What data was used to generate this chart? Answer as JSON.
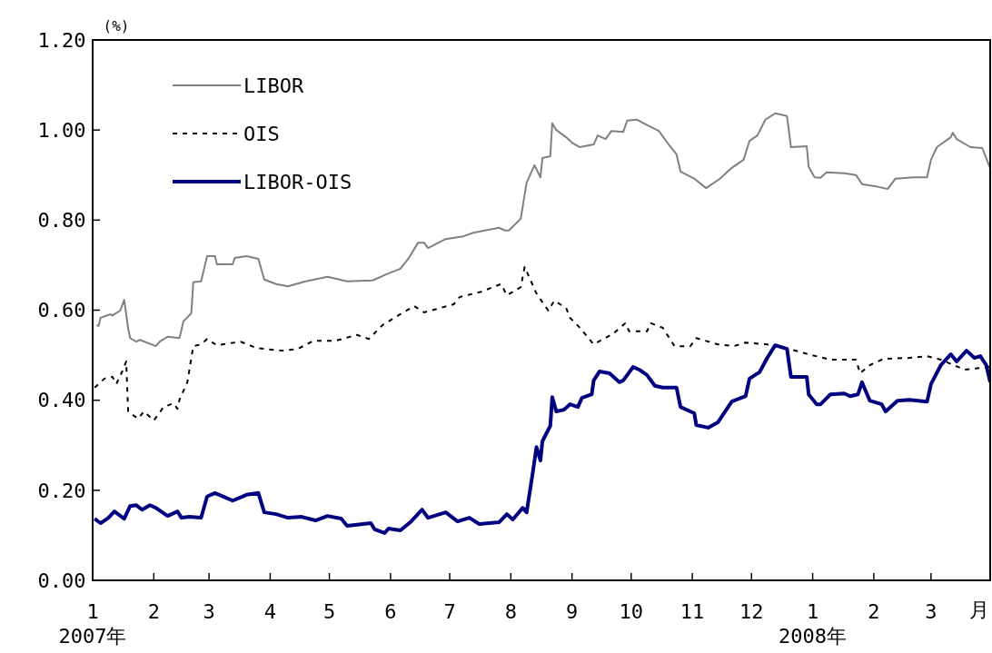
{
  "chart_data": {
    "type": "line",
    "ylabel": "(%)",
    "xlabel": "月",
    "legend": "top left",
    "grid": false,
    "xlim": [
      "2007-01-01",
      "2008-03-31"
    ],
    "ylim": [
      0,
      1.2
    ],
    "xticks": [
      {
        "value": "2007-01-01",
        "label": "1\n2007年"
      },
      {
        "value": "2007-02-01",
        "label": "2"
      },
      {
        "value": "2007-03-01",
        "label": "3"
      },
      {
        "value": "2007-04-01",
        "label": "4"
      },
      {
        "value": "2007-05-01",
        "label": "5"
      },
      {
        "value": "2007-06-01",
        "label": "6"
      },
      {
        "value": "2007-07-01",
        "label": "7"
      },
      {
        "value": "2007-08-01",
        "label": "8"
      },
      {
        "value": "2007-09-01",
        "label": "9"
      },
      {
        "value": "2007-10-01",
        "label": "10"
      },
      {
        "value": "2007-11-01",
        "label": "11"
      },
      {
        "value": "2007-12-01",
        "label": "12"
      },
      {
        "value": "2008-01-01",
        "label": "1\n2008年"
      },
      {
        "value": "2008-02-01",
        "label": "2"
      },
      {
        "value": "2008-03-01",
        "label": "3"
      }
    ],
    "yticks": [
      {
        "value": 0,
        "label": "0.00"
      },
      {
        "value": 0.2,
        "label": "0.20"
      },
      {
        "value": 0.4,
        "label": "0.40"
      },
      {
        "value": 0.6,
        "label": "0.60"
      },
      {
        "value": 0.8,
        "label": "0.80"
      },
      {
        "value": 1,
        "label": "1.00"
      },
      {
        "value": 1.2,
        "label": "1.20"
      }
    ],
    "series": [
      {
        "name": "LIBOR",
        "color": "#808080",
        "line_style": "solid",
        "x": [
          "2007-01-03",
          "2007-01-04",
          "2007-01-05",
          "2007-01-10",
          "2007-01-11",
          "2007-01-15",
          "2007-01-17",
          "2007-01-19",
          "2007-01-20",
          "2007-01-23",
          "2007-01-25",
          "2007-02-02",
          "2007-02-04",
          "2007-02-08",
          "2007-02-14",
          "2007-02-16",
          "2007-02-20",
          "2007-02-21",
          "2007-02-25",
          "2007-02-28",
          "2007-03-04",
          "2007-03-05",
          "2007-03-13",
          "2007-03-14",
          "2007-03-20",
          "2007-03-26",
          "2007-03-29",
          "2007-04-04",
          "2007-04-10",
          "2007-04-19",
          "2007-04-30",
          "2007-05-10",
          "2007-05-23",
          "2007-05-30",
          "2007-06-06",
          "2007-06-10",
          "2007-06-15",
          "2007-06-18",
          "2007-06-20",
          "2007-06-29",
          "2007-07-08",
          "2007-07-13",
          "2007-07-26",
          "2007-07-29",
          "2007-07-31",
          "2007-08-06",
          "2007-08-09",
          "2007-08-13",
          "2007-08-16",
          "2007-08-17",
          "2007-08-21",
          "2007-08-22",
          "2007-08-24",
          "2007-08-29",
          "2007-09-01",
          "2007-09-05",
          "2007-09-12",
          "2007-09-14",
          "2007-09-18",
          "2007-09-21",
          "2007-09-27",
          "2007-09-29",
          "2007-10-04",
          "2007-10-09",
          "2007-10-15",
          "2007-10-20",
          "2007-10-24",
          "2007-10-26",
          "2007-11-02",
          "2007-11-08",
          "2007-11-15",
          "2007-11-21",
          "2007-11-27",
          "2007-11-30",
          "2007-12-04",
          "2007-12-08",
          "2007-12-13",
          "2007-12-19",
          "2007-12-21",
          "2007-12-29",
          "2007-12-30",
          "2008-01-02",
          "2008-01-05",
          "2008-01-08",
          "2008-01-17",
          "2008-01-23",
          "2008-01-26",
          "2008-02-02",
          "2008-02-08",
          "2008-02-12",
          "2008-02-21",
          "2008-02-28",
          "2008-03-01",
          "2008-03-04",
          "2008-03-11",
          "2008-03-12",
          "2008-03-14",
          "2008-03-21",
          "2008-03-27",
          "2008-03-31"
        ],
        "values": [
          0.567,
          0.565,
          0.583,
          0.591,
          0.588,
          0.599,
          0.623,
          0.559,
          0.538,
          0.53,
          0.534,
          0.52,
          0.53,
          0.541,
          0.538,
          0.575,
          0.593,
          0.662,
          0.664,
          0.72,
          0.72,
          0.702,
          0.702,
          0.716,
          0.72,
          0.714,
          0.668,
          0.658,
          0.653,
          0.664,
          0.674,
          0.664,
          0.666,
          0.68,
          0.692,
          0.714,
          0.75,
          0.75,
          0.738,
          0.758,
          0.764,
          0.772,
          0.783,
          0.777,
          0.777,
          0.803,
          0.883,
          0.922,
          0.895,
          0.938,
          0.942,
          1.015,
          1.0,
          0.984,
          0.972,
          0.962,
          0.968,
          0.988,
          0.98,
          0.998,
          0.996,
          1.021,
          1.023,
          1.011,
          0.998,
          0.968,
          0.946,
          0.908,
          0.892,
          0.871,
          0.892,
          0.916,
          0.934,
          0.976,
          0.988,
          1.023,
          1.037,
          1.031,
          0.962,
          0.964,
          0.918,
          0.895,
          0.894,
          0.906,
          0.904,
          0.9,
          0.88,
          0.875,
          0.869,
          0.892,
          0.895,
          0.895,
          0.934,
          0.962,
          0.984,
          0.994,
          0.98,
          0.962,
          0.96,
          0.915
        ]
      },
      {
        "name": "OIS",
        "color": "#000000",
        "line_style": "dotted",
        "x": [
          "2007-01-02",
          "2007-01-07",
          "2007-01-11",
          "2007-01-13",
          "2007-01-16",
          "2007-01-18",
          "2007-01-19",
          "2007-01-24",
          "2007-01-27",
          "2007-02-01",
          "2007-02-06",
          "2007-02-11",
          "2007-02-13",
          "2007-02-14",
          "2007-02-18",
          "2007-02-21",
          "2007-02-25",
          "2007-02-28",
          "2007-03-05",
          "2007-03-17",
          "2007-03-25",
          "2007-04-07",
          "2007-04-15",
          "2007-04-23",
          "2007-05-04",
          "2007-05-15",
          "2007-05-21",
          "2007-05-28",
          "2007-06-06",
          "2007-06-13",
          "2007-06-18",
          "2007-07-03",
          "2007-07-06",
          "2007-07-17",
          "2007-07-27",
          "2007-07-30",
          "2007-08-06",
          "2007-08-08",
          "2007-08-14",
          "2007-08-20",
          "2007-08-23",
          "2007-08-29",
          "2007-08-31",
          "2007-09-05",
          "2007-09-12",
          "2007-09-22",
          "2007-09-28",
          "2007-09-30",
          "2007-10-09",
          "2007-10-11",
          "2007-10-17",
          "2007-10-23",
          "2007-10-31",
          "2007-11-03",
          "2007-11-14",
          "2007-11-22",
          "2007-11-28",
          "2007-12-09",
          "2007-12-20",
          "2007-12-30",
          "2008-01-10",
          "2008-01-23",
          "2008-01-25",
          "2008-01-30",
          "2008-02-06",
          "2008-02-19",
          "2008-02-28",
          "2008-03-06",
          "2008-03-18",
          "2008-03-27",
          "2008-03-31"
        ],
        "values": [
          0.428,
          0.448,
          0.452,
          0.436,
          0.464,
          0.486,
          0.375,
          0.359,
          0.375,
          0.355,
          0.385,
          0.393,
          0.381,
          0.401,
          0.44,
          0.52,
          0.524,
          0.536,
          0.522,
          0.53,
          0.516,
          0.51,
          0.514,
          0.532,
          0.532,
          0.545,
          0.536,
          0.567,
          0.591,
          0.609,
          0.595,
          0.613,
          0.629,
          0.641,
          0.658,
          0.633,
          0.651,
          0.696,
          0.637,
          0.599,
          0.621,
          0.605,
          0.583,
          0.561,
          0.524,
          0.548,
          0.571,
          0.553,
          0.553,
          0.571,
          0.561,
          0.52,
          0.52,
          0.538,
          0.524,
          0.52,
          0.528,
          0.524,
          0.514,
          0.502,
          0.49,
          0.49,
          0.46,
          0.478,
          0.492,
          0.494,
          0.498,
          0.49,
          0.468,
          0.472,
          0.475
        ]
      },
      {
        "name": "LIBOR-OIS",
        "color": "#000080",
        "line_style": "solid",
        "x": [
          "2007-01-02",
          "2007-01-05",
          "2007-01-09",
          "2007-01-12",
          "2007-01-17",
          "2007-01-20",
          "2007-01-23",
          "2007-01-26",
          "2007-01-30",
          "2007-02-02",
          "2007-02-08",
          "2007-02-13",
          "2007-02-15",
          "2007-02-19",
          "2007-02-25",
          "2007-02-28",
          "2007-03-04",
          "2007-03-13",
          "2007-03-20",
          "2007-03-26",
          "2007-03-29",
          "2007-04-04",
          "2007-04-10",
          "2007-04-17",
          "2007-04-24",
          "2007-04-30",
          "2007-05-07",
          "2007-05-10",
          "2007-05-22",
          "2007-05-24",
          "2007-05-29",
          "2007-05-31",
          "2007-06-06",
          "2007-06-11",
          "2007-06-17",
          "2007-06-20",
          "2007-06-29",
          "2007-07-05",
          "2007-07-11",
          "2007-07-16",
          "2007-07-26",
          "2007-07-30",
          "2007-08-02",
          "2007-08-07",
          "2007-08-09",
          "2007-08-12",
          "2007-08-14",
          "2007-08-16",
          "2007-08-17",
          "2007-08-21",
          "2007-08-22",
          "2007-08-24",
          "2007-08-28",
          "2007-08-31",
          "2007-09-04",
          "2007-09-06",
          "2007-09-11",
          "2007-09-12",
          "2007-09-15",
          "2007-09-20",
          "2007-09-25",
          "2007-09-27",
          "2007-10-02",
          "2007-10-05",
          "2007-10-09",
          "2007-10-13",
          "2007-10-17",
          "2007-10-24",
          "2007-10-26",
          "2007-11-02",
          "2007-11-03",
          "2007-11-09",
          "2007-11-14",
          "2007-11-21",
          "2007-11-28",
          "2007-11-30",
          "2007-12-05",
          "2007-12-09",
          "2007-12-13",
          "2007-12-19",
          "2007-12-21",
          "2007-12-29",
          "2007-12-30",
          "2008-01-03",
          "2008-01-05",
          "2008-01-10",
          "2008-01-17",
          "2008-01-20",
          "2008-01-24",
          "2008-01-26",
          "2008-01-30",
          "2008-02-05",
          "2008-02-07",
          "2008-02-13",
          "2008-02-19",
          "2008-02-28",
          "2008-03-01",
          "2008-03-06",
          "2008-03-11",
          "2008-03-14",
          "2008-03-19",
          "2008-03-23",
          "2008-03-26",
          "2008-03-29",
          "2008-03-31"
        ],
        "values": [
          0.137,
          0.127,
          0.139,
          0.153,
          0.137,
          0.165,
          0.167,
          0.157,
          0.167,
          0.161,
          0.143,
          0.153,
          0.139,
          0.141,
          0.139,
          0.186,
          0.194,
          0.177,
          0.19,
          0.194,
          0.151,
          0.147,
          0.139,
          0.141,
          0.133,
          0.143,
          0.137,
          0.121,
          0.127,
          0.113,
          0.105,
          0.115,
          0.111,
          0.129,
          0.157,
          0.139,
          0.151,
          0.131,
          0.139,
          0.125,
          0.129,
          0.147,
          0.135,
          0.161,
          0.151,
          0.236,
          0.296,
          0.266,
          0.309,
          0.343,
          0.407,
          0.375,
          0.379,
          0.391,
          0.385,
          0.405,
          0.413,
          0.444,
          0.464,
          0.46,
          0.44,
          0.444,
          0.474,
          0.468,
          0.456,
          0.432,
          0.428,
          0.428,
          0.385,
          0.371,
          0.345,
          0.339,
          0.351,
          0.397,
          0.409,
          0.448,
          0.462,
          0.494,
          0.522,
          0.514,
          0.452,
          0.452,
          0.413,
          0.391,
          0.391,
          0.413,
          0.415,
          0.409,
          0.413,
          0.44,
          0.399,
          0.391,
          0.375,
          0.399,
          0.401,
          0.397,
          0.436,
          0.478,
          0.502,
          0.486,
          0.51,
          0.494,
          0.498,
          0.478,
          0.44
        ]
      }
    ]
  }
}
